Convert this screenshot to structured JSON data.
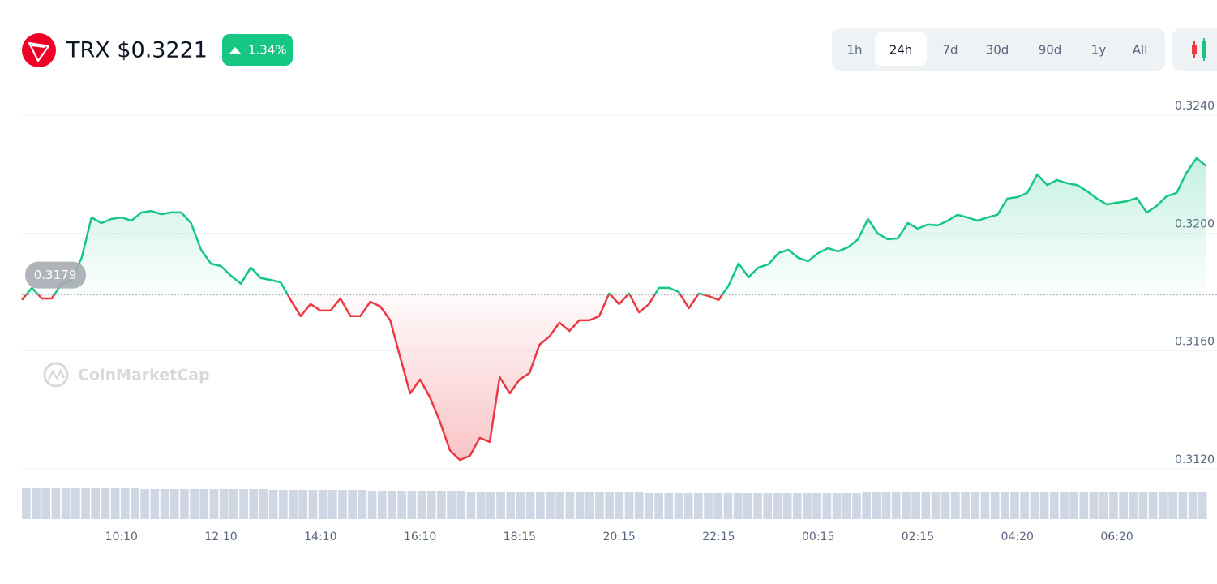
{
  "chart_data": {
    "type": "line",
    "title": "TRX $0.3221",
    "change": "1.34%",
    "timeframes": [
      "1h",
      "24h",
      "7d",
      "30d",
      "90d",
      "1y",
      "All"
    ],
    "selected_timeframe": "24h",
    "watermark": "CoinMarketCap",
    "baseline": 0.3179,
    "up_color": "#16c784",
    "down_color": "#ea3943",
    "ylim": [
      0.312,
      0.324
    ],
    "yticks": [
      {
        "value": 0.312,
        "label": "0.3120"
      },
      {
        "value": 0.316,
        "label": "0.3160"
      },
      {
        "value": 0.32,
        "label": "0.3200"
      },
      {
        "value": 0.324,
        "label": "0.3240"
      }
    ],
    "grid": true,
    "categories": [
      null,
      null,
      null,
      null,
      null,
      null,
      null,
      null,
      null,
      null,
      "10:10",
      null,
      null,
      null,
      null,
      null,
      null,
      null,
      null,
      null,
      "12:10",
      null,
      null,
      null,
      null,
      null,
      null,
      null,
      null,
      null,
      "14:10",
      null,
      null,
      null,
      null,
      null,
      null,
      null,
      null,
      null,
      "16:10",
      null,
      null,
      null,
      null,
      null,
      null,
      null,
      null,
      null,
      "18:15",
      null,
      null,
      null,
      null,
      null,
      null,
      null,
      null,
      null,
      "20:15",
      null,
      null,
      null,
      null,
      null,
      null,
      null,
      null,
      null,
      "22:15",
      null,
      null,
      null,
      null,
      null,
      null,
      null,
      null,
      null,
      "00:15",
      null,
      null,
      null,
      null,
      null,
      null,
      null,
      null,
      null,
      "02:15",
      null,
      null,
      null,
      null,
      null,
      null,
      null,
      null,
      null,
      "04:20",
      null,
      null,
      null,
      null,
      null,
      null,
      null,
      null,
      null,
      "06:20",
      null,
      null,
      null,
      null,
      null,
      null,
      null,
      null,
      null
    ],
    "values": [
      0.31773,
      0.31814,
      0.31778,
      0.31778,
      0.31828,
      0.31841,
      0.31916,
      0.32053,
      0.32034,
      0.32048,
      0.32053,
      0.32042,
      0.3207,
      0.32075,
      0.32064,
      0.3207,
      0.3207,
      0.32034,
      0.31943,
      0.31896,
      0.31888,
      0.31855,
      0.31828,
      0.31883,
      0.31847,
      0.31841,
      0.31833,
      0.31773,
      0.31718,
      0.31759,
      0.31737,
      0.31737,
      0.31778,
      0.31718,
      0.31718,
      0.31767,
      0.31751,
      0.31704,
      0.3158,
      0.31456,
      0.31503,
      0.31442,
      0.3136,
      0.31263,
      0.3123,
      0.31244,
      0.31305,
      0.31291,
      0.31511,
      0.31456,
      0.31503,
      0.31525,
      0.31621,
      0.31649,
      0.31696,
      0.31668,
      0.31704,
      0.31704,
      0.31718,
      0.31795,
      0.31759,
      0.31795,
      0.31731,
      0.31759,
      0.31814,
      0.31814,
      0.318,
      0.31745,
      0.31795,
      0.31786,
      0.31773,
      0.31822,
      0.31897,
      0.3185,
      0.31883,
      0.31894,
      0.31932,
      0.31943,
      0.31916,
      0.31905,
      0.31932,
      0.31949,
      0.31938,
      0.31952,
      0.31979,
      0.32048,
      0.31998,
      0.31979,
      0.31982,
      0.32034,
      0.32015,
      0.32029,
      0.32026,
      0.32042,
      0.32062,
      0.32053,
      0.32042,
      0.32053,
      0.32062,
      0.32117,
      0.32122,
      0.32136,
      0.32199,
      0.32163,
      0.3218,
      0.32169,
      0.32163,
      0.32142,
      0.32117,
      0.32097,
      0.32103,
      0.32108,
      0.32119,
      0.3207,
      0.32092,
      0.32125,
      0.32136,
      0.32205,
      0.32254,
      0.32227
    ],
    "volume": [
      38,
      38,
      38,
      38,
      38,
      38,
      38,
      38,
      38,
      38,
      38,
      38,
      37,
      37,
      37,
      37,
      37,
      37,
      37,
      37,
      37,
      37,
      37,
      37,
      37,
      36,
      36,
      36,
      36,
      36,
      36,
      36,
      36,
      36,
      36,
      35,
      35,
      35,
      35,
      35,
      35,
      35,
      35,
      35,
      35,
      34,
      34,
      34,
      34,
      34,
      33,
      33,
      33,
      33,
      33,
      33,
      33,
      33,
      33,
      33,
      33,
      33,
      33,
      32,
      32,
      32,
      32,
      32,
      32,
      32,
      32,
      32,
      32,
      32,
      32,
      32,
      32,
      32,
      32,
      32,
      32,
      32,
      32,
      32,
      32,
      33,
      33,
      33,
      33,
      33,
      33,
      33,
      33,
      33,
      33,
      33,
      33,
      33,
      33,
      33,
      34,
      34,
      34,
      34,
      34,
      34,
      34,
      34,
      34,
      34,
      34,
      34,
      34,
      34,
      34,
      34,
      34,
      34,
      34,
      34
    ],
    "volume_lim": [
      0,
      40
    ],
    "volume_color": "#cfd6e4"
  }
}
